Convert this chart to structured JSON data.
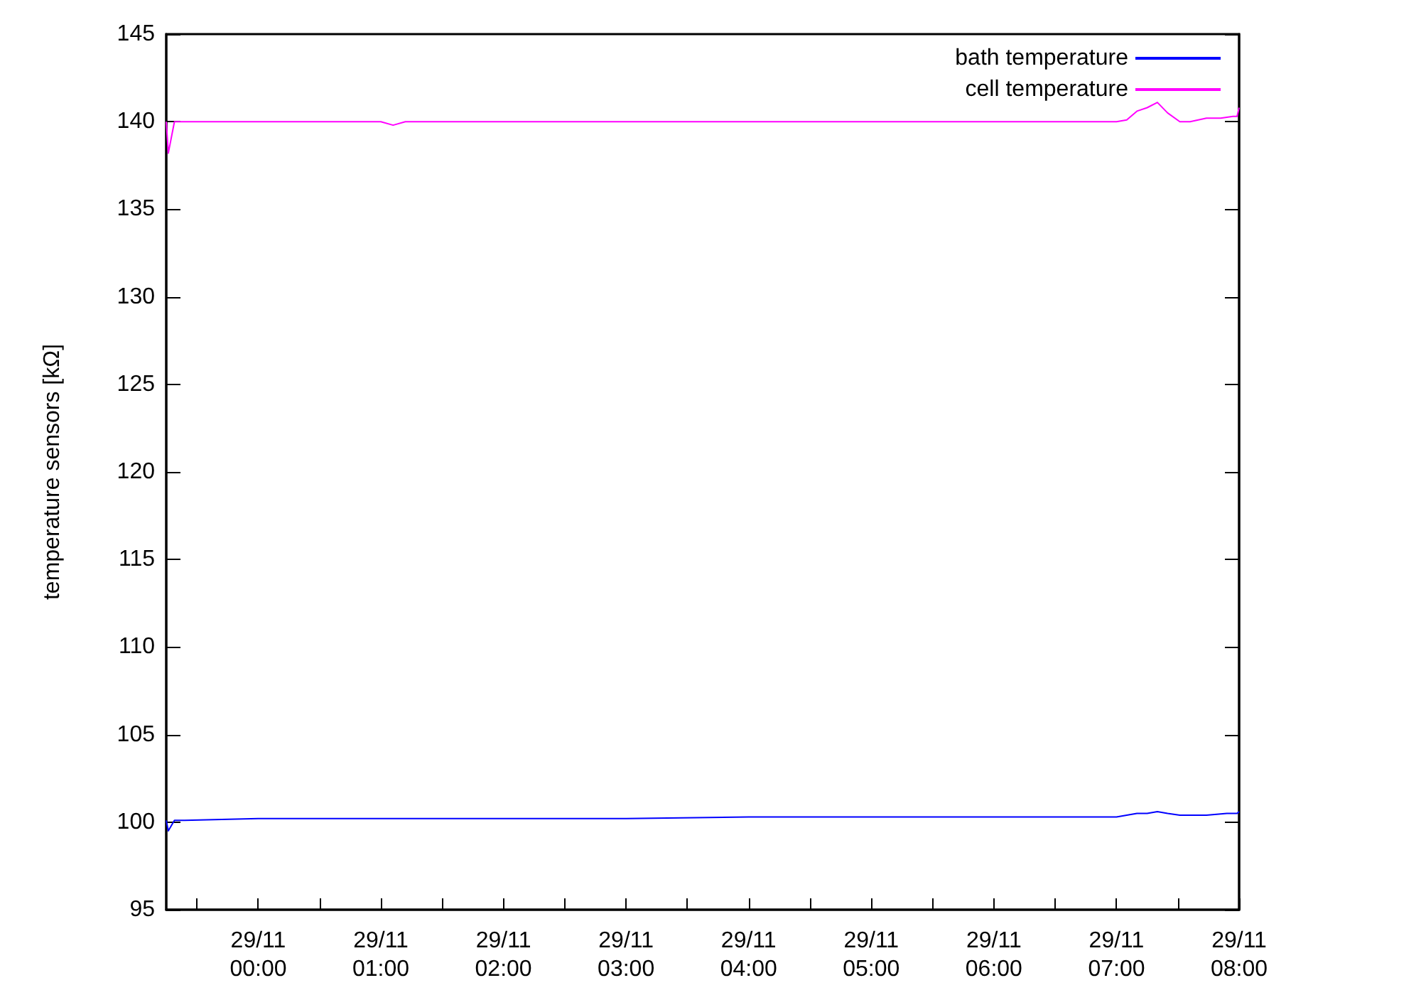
{
  "chart_data": {
    "type": "line",
    "ylabel": "temperature sensors [kΩ]",
    "xlim": [
      "--11-28T23:15",
      "--11-29T08:00"
    ],
    "xticks": [
      {
        "value": "--11-28T23:30",
        "label": null
      },
      {
        "value": "--11-29T00:00",
        "label": "29/11\n00:00"
      },
      {
        "value": "--11-29T00:30",
        "label": null
      },
      {
        "value": "--11-29T01:00",
        "label": "29/11\n01:00"
      },
      {
        "value": "--11-29T01:30",
        "label": null
      },
      {
        "value": "--11-29T02:00",
        "label": "29/11\n02:00"
      },
      {
        "value": "--11-29T02:30",
        "label": null
      },
      {
        "value": "--11-29T03:00",
        "label": "29/11\n03:00"
      },
      {
        "value": "--11-29T03:30",
        "label": null
      },
      {
        "value": "--11-29T04:00",
        "label": "29/11\n04:00"
      },
      {
        "value": "--11-29T04:30",
        "label": null
      },
      {
        "value": "--11-29T05:00",
        "label": "29/11\n05:00"
      },
      {
        "value": "--11-29T05:30",
        "label": null
      },
      {
        "value": "--11-29T06:00",
        "label": "29/11\n06:00"
      },
      {
        "value": "--11-29T06:30",
        "label": null
      },
      {
        "value": "--11-29T07:00",
        "label": "29/11\n07:00"
      },
      {
        "value": "--11-29T07:30",
        "label": null
      },
      {
        "value": "--11-29T08:00",
        "label": "29/11\n08:00"
      }
    ],
    "ylim": [
      95,
      145
    ],
    "yticks": [
      95,
      100,
      105,
      110,
      115,
      120,
      125,
      130,
      135,
      140,
      145
    ],
    "grid": false,
    "legend": "top right",
    "marker": "none",
    "line_style": "solid",
    "series": [
      {
        "name": "bath temperature",
        "color": "#0000ff",
        "x": [
          "--11-28T23:15",
          "--11-28T23:16",
          "--11-28T23:19",
          "--11-28T23:24",
          "--11-29T00:00",
          "--11-29T01:00",
          "--11-29T02:00",
          "--11-29T03:00",
          "--11-29T04:00",
          "--11-29T05:00",
          "--11-29T06:00",
          "--11-29T06:30",
          "--11-29T07:00",
          "--11-29T07:05",
          "--11-29T07:10",
          "--11-29T07:15",
          "--11-29T07:20",
          "--11-29T07:25",
          "--11-29T07:31",
          "--11-29T07:36",
          "--11-29T07:44",
          "--11-29T07:54",
          "--11-29T07:59",
          "--11-29T08:00"
        ],
        "values": [
          100.1,
          99.5,
          100.1,
          100.1,
          100.2,
          100.2,
          100.2,
          100.2,
          100.3,
          100.3,
          100.3,
          100.3,
          100.3,
          100.4,
          100.5,
          100.5,
          100.6,
          100.5,
          100.4,
          100.4,
          100.4,
          100.5,
          100.5,
          100.6
        ]
      },
      {
        "name": "cell temperature",
        "color": "#ff00ff",
        "x": [
          "--11-28T23:15",
          "--11-28T23:16",
          "--11-28T23:19",
          "--11-28T23:24",
          "--11-28T23:42",
          "--11-29T00:00",
          "--11-29T00:30",
          "--11-29T01:00",
          "--11-29T01:06",
          "--11-29T01:12",
          "--11-29T01:30",
          "--11-29T02:00",
          "--11-29T03:00",
          "--11-29T04:00",
          "--11-29T05:00",
          "--11-29T06:00",
          "--11-29T06:30",
          "--11-29T07:00",
          "--11-29T07:05",
          "--11-29T07:10",
          "--11-29T07:15",
          "--11-29T07:20",
          "--11-29T07:25",
          "--11-29T07:31",
          "--11-29T07:36",
          "--11-29T07:44",
          "--11-29T07:51",
          "--11-29T07:57",
          "--11-29T07:59",
          "--11-29T08:00"
        ],
        "values": [
          140.0,
          138.2,
          140.0,
          140.0,
          140.0,
          140.0,
          140.0,
          140.0,
          139.8,
          140.0,
          140.0,
          140.0,
          140.0,
          140.0,
          140.0,
          140.0,
          140.0,
          140.0,
          140.1,
          140.6,
          140.8,
          141.1,
          140.5,
          140.0,
          140.0,
          140.2,
          140.2,
          140.3,
          140.3,
          140.8
        ]
      }
    ]
  }
}
